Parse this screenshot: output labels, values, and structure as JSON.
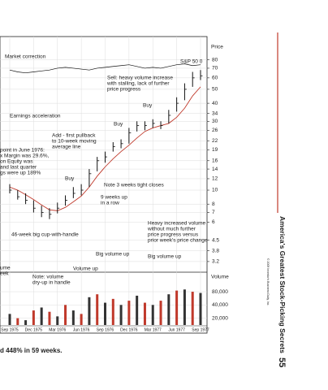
{
  "chart_data": {
    "type": "stock",
    "ylabel": "Price",
    "categories": [
      "Sep 1975",
      null,
      null,
      "Dec 1975",
      null,
      null,
      "Mar 1976",
      null,
      null,
      "Jun 1976",
      null,
      null,
      "Sep 1976",
      null,
      null,
      "Dec 1976",
      null,
      null,
      "Mar 1977",
      null,
      null,
      "Jun 1977",
      null,
      null,
      "Sep 1977"
    ],
    "price": {
      "color": "#111",
      "high": [
        11,
        10,
        9.5,
        8.5,
        7.8,
        7.5,
        8.2,
        9.2,
        10.5,
        11,
        14,
        17,
        18.5,
        21.5,
        22.5,
        27,
        30,
        30,
        31,
        30,
        36,
        44,
        55,
        66,
        68
      ],
      "low": [
        9.5,
        8.6,
        8,
        7,
        6.5,
        6.3,
        6.9,
        7.8,
        8.8,
        9.2,
        10.5,
        13.5,
        15.5,
        18.5,
        19.5,
        21,
        25.5,
        26,
        27,
        26.5,
        29,
        35,
        42,
        52,
        58
      ],
      "close": [
        10,
        9,
        8.5,
        7.5,
        7,
        6.8,
        7.5,
        8.5,
        9.5,
        10,
        13,
        16,
        17,
        20,
        21,
        25,
        28,
        28,
        29,
        28,
        33,
        40,
        50,
        60,
        62
      ]
    },
    "moving_average": {
      "color": "#c0392b",
      "values": [
        10.5,
        10,
        9.3,
        8.6,
        7.9,
        7.3,
        7.2,
        7.6,
        8.3,
        9.1,
        10.5,
        12.5,
        14.5,
        16.5,
        18.5,
        20.5,
        23,
        25.5,
        27,
        28,
        29,
        32,
        37,
        45,
        52
      ]
    },
    "index_line": {
      "name": "S&P 50 0",
      "color": "#111",
      "values": [
        68,
        66,
        65,
        66,
        67,
        68,
        70,
        71,
        70,
        69,
        68,
        70,
        71,
        72,
        73,
        74,
        72,
        70,
        71,
        70,
        72,
        74,
        75,
        73,
        74
      ]
    },
    "volume": {
      "label": "Volume",
      "color": "#333",
      "values": [
        25000,
        20000,
        18000,
        30000,
        35000,
        28000,
        22000,
        40000,
        30000,
        25000,
        60000,
        70000,
        45000,
        55000,
        40000,
        50000,
        65000,
        45000,
        40000,
        50000,
        70000,
        85000,
        90000,
        80000,
        75000
      ]
    },
    "ylim": [
      2.7,
      116
    ],
    "log_scale": true,
    "yticks": [
      3.2,
      3.8,
      4.5,
      6,
      7,
      8,
      10,
      12,
      14,
      16,
      19,
      22,
      26,
      30,
      34,
      40,
      50,
      60,
      70,
      80
    ],
    "y2lim": [
      14000,
      196000
    ],
    "y2_log_scale": true,
    "y2ticks": [
      {
        "value": 80000,
        "label": "80,000"
      },
      {
        "value": 40000,
        "label": "40,000"
      },
      {
        "value": 20000,
        "label": "20,000"
      }
    ],
    "grid": true,
    "annotations": [
      {
        "lines": [
          "Market correction"
        ]
      },
      {
        "lines": [
          "S&P 50 0"
        ]
      },
      {
        "lines": [
          "Sell: heavy volume increase",
          "with stalling, lack of further",
          "price progress"
        ]
      },
      {
        "lines": [
          "Buy"
        ]
      },
      {
        "lines": [
          "Buy"
        ]
      },
      {
        "lines": [
          "Earnings acceleration"
        ]
      },
      {
        "lines": [
          "Add - first pullback",
          "to 10-week moving",
          "average line"
        ]
      },
      {
        "lines": [
          "point in June 1976:",
          "x Margin was 29.6%,",
          "on Equity was",
          "and last quarter",
          "gs were up 189%"
        ]
      },
      {
        "lines": [
          "Buy"
        ]
      },
      {
        "lines": [
          "Note 3 weeks tight closes"
        ]
      },
      {
        "lines": [
          "9 weeks up",
          "in a row"
        ]
      },
      {
        "lines": [
          "46-week big cup-with-handle"
        ]
      },
      {
        "lines": [
          "Heavy increased volume",
          "without much further",
          "price progress versus",
          "prior week's price change"
        ]
      },
      {
        "lines": [
          "Big volume up"
        ]
      },
      {
        "lines": [
          "Big volume up"
        ]
      },
      {
        "lines": [
          "Volume up"
        ]
      },
      {
        "lines": [
          "ume",
          "eek"
        ]
      },
      {
        "lines": [
          "Note: volume",
          "dry-up in handle"
        ]
      }
    ]
  },
  "page": {
    "side_title": "America's Greatest Stock-Picking Secrets",
    "page_number": "55",
    "copyright": "© 2009 Investor's Business Daily, Inc.",
    "caption": "d 448% in 59 weeks."
  }
}
